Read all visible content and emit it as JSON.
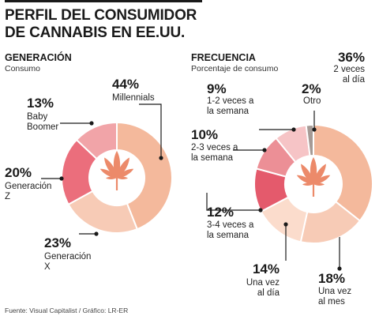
{
  "header": {
    "title_line1": "PERFIL DEL CONSUMIDOR",
    "title_line2": "DE CANNABIS EN EE.UU."
  },
  "footer": {
    "source": "Fuente: Visual Capitalist / Gráfico: LR-ER"
  },
  "chart_data": [
    {
      "type": "pie",
      "title": "GENERACIÓN",
      "subtitle": "Consumo",
      "categories": [
        "Millennials",
        "Generación X",
        "Generación Z",
        "Baby Boomer"
      ],
      "values": [
        44,
        23,
        20,
        13
      ],
      "value_labels": [
        "44%",
        "23%",
        "20%",
        "13%"
      ],
      "label_lines": [
        [
          "Millennials"
        ],
        [
          "Generación",
          "X"
        ],
        [
          "Generación",
          "Z"
        ],
        [
          "Baby",
          "Boomer"
        ]
      ],
      "colors": [
        "#f4b99c",
        "#f7cbb6",
        "#eb6e7c",
        "#f1a4a8"
      ],
      "center_icon": "cannabis-leaf-icon"
    },
    {
      "type": "pie",
      "title": "FRECUENCIA",
      "subtitle": "Porcentaje de consumo",
      "categories": [
        "2 veces al día",
        "Una vez al mes",
        "Una vez al día",
        "3-4 veces a la semana",
        "2-3 veces a la semana",
        "1-2 veces a la semana",
        "Otro"
      ],
      "values": [
        36,
        18,
        14,
        12,
        10,
        9,
        2
      ],
      "value_labels": [
        "36%",
        "18%",
        "14%",
        "12%",
        "10%",
        "9%",
        "2%"
      ],
      "label_lines": [
        [
          "2 veces",
          "al día"
        ],
        [
          "Una vez",
          "al mes"
        ],
        [
          "Una vez",
          "al día"
        ],
        [
          "3-4 veces a",
          "la semana"
        ],
        [
          "2-3 veces a",
          "la semana"
        ],
        [
          "1-2 veces a",
          "la semana"
        ],
        [
          "Otro"
        ]
      ],
      "colors": [
        "#f4b99c",
        "#f7cbb6",
        "#fbdccc",
        "#e45a6c",
        "#ec8f96",
        "#f6c4c6",
        "#a59a95"
      ],
      "center_icon": "cannabis-leaf-icon"
    }
  ]
}
